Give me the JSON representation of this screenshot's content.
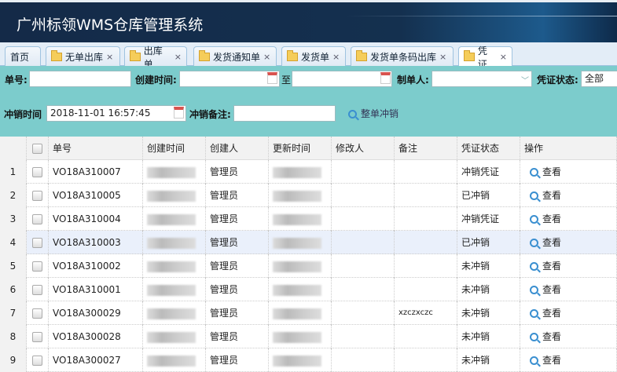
{
  "app": {
    "title": "广州标领WMS仓库管理系统"
  },
  "tabs": [
    {
      "label": "首页",
      "icon": "none",
      "closable": false
    },
    {
      "label": "无单出库",
      "icon": "folder-icon",
      "closable": true
    },
    {
      "label": "出库单",
      "icon": "folder-icon",
      "closable": true
    },
    {
      "label": "发货通知单",
      "icon": "folder-icon",
      "closable": true
    },
    {
      "label": "发货单",
      "icon": "folder-icon",
      "closable": true
    },
    {
      "label": "发货单条码出库",
      "icon": "folder-icon",
      "closable": true
    },
    {
      "label": "凭证",
      "icon": "folder-icon",
      "closable": true,
      "active": true
    }
  ],
  "close_glyph": "×",
  "filters": {
    "order_no_label": "单号:",
    "order_no_value": "",
    "created_label": "创建时间:",
    "created_from": "",
    "to_label": "至",
    "created_to": "",
    "maker_label": "制单人:",
    "maker_value": "",
    "status_label": "凭证状态:",
    "status_value": "全部",
    "reverse_time_label": "冲销时间",
    "reverse_time_value": "2018-11-01 16:57:45",
    "reverse_note_label": "冲销备注:",
    "reverse_note_value": "",
    "reverse_button": "整单冲销"
  },
  "table": {
    "columns": [
      "单号",
      "创建时间",
      "创建人",
      "更新时间",
      "修改人",
      "备注",
      "凭证状态",
      "操作"
    ],
    "action_label": "查看",
    "rows": [
      {
        "n": "1",
        "no": "VO18A310007",
        "creator": "管理员",
        "modifier": "",
        "note": "",
        "status": "冲销凭证"
      },
      {
        "n": "2",
        "no": "VO18A310005",
        "creator": "管理员",
        "modifier": "",
        "note": "",
        "status": "已冲销"
      },
      {
        "n": "3",
        "no": "VO18A310004",
        "creator": "管理员",
        "modifier": "",
        "note": "",
        "status": "冲销凭证"
      },
      {
        "n": "4",
        "no": "VO18A310003",
        "creator": "管理员",
        "modifier": "",
        "note": "",
        "status": "已冲销",
        "selected": true
      },
      {
        "n": "5",
        "no": "VO18A310002",
        "creator": "管理员",
        "modifier": "",
        "note": "",
        "status": "未冲销"
      },
      {
        "n": "6",
        "no": "VO18A310001",
        "creator": "管理员",
        "modifier": "",
        "note": "",
        "status": "未冲销"
      },
      {
        "n": "7",
        "no": "VO18A300029",
        "creator": "管理员",
        "modifier": "",
        "note": "xzczxczc",
        "status": "未冲销"
      },
      {
        "n": "8",
        "no": "VO18A300028",
        "creator": "管理员",
        "modifier": "",
        "note": "",
        "status": "未冲销"
      },
      {
        "n": "9",
        "no": "VO18A300027",
        "creator": "管理员",
        "modifier": "",
        "note": "",
        "status": "未冲销"
      }
    ]
  }
}
